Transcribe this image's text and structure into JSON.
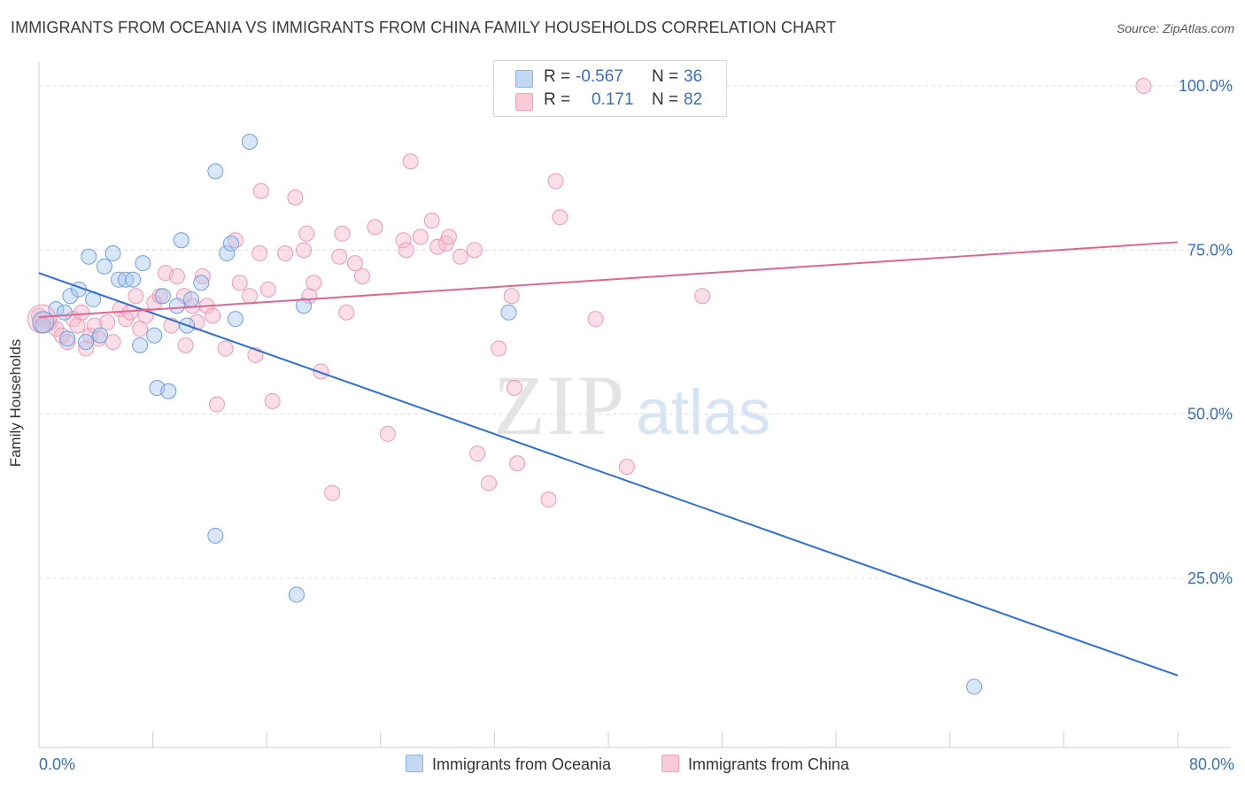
{
  "title": "IMMIGRANTS FROM OCEANIA VS IMMIGRANTS FROM CHINA FAMILY HOUSEHOLDS CORRELATION CHART",
  "source": "Source: ZipAtlas.com",
  "watermark": {
    "zip": "ZIP",
    "atlas": "atlas"
  },
  "legend": {
    "rows": [
      {
        "r_label": "R =",
        "r_value": "-0.567",
        "n_label": "N =",
        "n_value": "36",
        "color": "#a8c8f0"
      },
      {
        "r_label": "R =",
        "r_value": "0.171",
        "n_label": "N =",
        "n_value": "82",
        "color": "#f5b8cb"
      }
    ]
  },
  "bottom_legend": [
    {
      "label": "Immigrants from Oceania",
      "color": "#a8c8f0"
    },
    {
      "label": "Immigrants from China",
      "color": "#f5b8cb"
    }
  ],
  "chart_data": {
    "type": "scatter",
    "title": "IMMIGRANTS FROM OCEANIA VS IMMIGRANTS FROM CHINA FAMILY HOUSEHOLDS CORRELATION CHART",
    "xlabel": "",
    "ylabel": "Family Households",
    "xlim": [
      0,
      80
    ],
    "ylim": [
      0,
      103
    ],
    "x_tick_labels": [
      "0.0%",
      "80.0%"
    ],
    "y_tick_labels": [
      "25.0%",
      "50.0%",
      "75.0%",
      "100.0%"
    ],
    "y_ticks": [
      25,
      50,
      75,
      100
    ],
    "grid": "horizontal dashed",
    "legend_position": "top-center",
    "series": [
      {
        "name": "Immigrants from Oceania",
        "color": "#6f9fe0",
        "fill": "#a8c8f0",
        "line_color": "#2e6fd1",
        "trend": {
          "x": [
            0,
            80
          ],
          "y": [
            71.5,
            10.2
          ]
        },
        "points": [
          [
            0.3,
            63.5
          ],
          [
            1.2,
            66
          ],
          [
            1.8,
            65.5
          ],
          [
            2,
            61.5
          ],
          [
            2.2,
            68
          ],
          [
            2.8,
            69
          ],
          [
            3.3,
            61
          ],
          [
            3.5,
            74
          ],
          [
            3.8,
            67.5
          ],
          [
            4.3,
            62
          ],
          [
            4.6,
            72.5
          ],
          [
            5.2,
            74.5
          ],
          [
            5.6,
            70.5
          ],
          [
            6.1,
            70.5
          ],
          [
            6.6,
            70.5
          ],
          [
            7.1,
            60.5
          ],
          [
            7.3,
            73
          ],
          [
            8.1,
            62
          ],
          [
            8.3,
            54
          ],
          [
            8.7,
            68
          ],
          [
            9.1,
            53.5
          ],
          [
            9.7,
            66.5
          ],
          [
            10,
            76.5
          ],
          [
            10.4,
            63.5
          ],
          [
            10.7,
            67.5
          ],
          [
            11.4,
            70
          ],
          [
            12.4,
            87
          ],
          [
            13.2,
            74.5
          ],
          [
            13.5,
            76
          ],
          [
            13.8,
            64.5
          ],
          [
            14.8,
            91.5
          ],
          [
            18.6,
            66.5
          ],
          [
            33,
            65.5
          ],
          [
            12.4,
            31.5
          ],
          [
            18.1,
            22.5
          ],
          [
            65.7,
            8.5
          ]
        ]
      },
      {
        "name": "Immigrants from China",
        "color": "#ee9ab4",
        "fill": "#f5b8cb",
        "line_color": "#e0668f",
        "trend": {
          "x": [
            0,
            80
          ],
          "y": [
            64.8,
            76.2
          ]
        },
        "points": [
          [
            0.3,
            64.5
          ],
          [
            0.8,
            64
          ],
          [
            1.2,
            63
          ],
          [
            1.6,
            62
          ],
          [
            2,
            61
          ],
          [
            2.4,
            64.5
          ],
          [
            2.7,
            63.5
          ],
          [
            3,
            65.5
          ],
          [
            3.3,
            60
          ],
          [
            3.6,
            62
          ],
          [
            3.9,
            63.5
          ],
          [
            4.2,
            61.5
          ],
          [
            4.8,
            64
          ],
          [
            5.2,
            61
          ],
          [
            5.7,
            66
          ],
          [
            6.1,
            64.5
          ],
          [
            6.4,
            65.5
          ],
          [
            6.8,
            68
          ],
          [
            7.1,
            63
          ],
          [
            7.5,
            65
          ],
          [
            8.1,
            67
          ],
          [
            8.5,
            68
          ],
          [
            8.9,
            71.5
          ],
          [
            9.3,
            63.5
          ],
          [
            9.7,
            71
          ],
          [
            10.2,
            68
          ],
          [
            10.3,
            60.5
          ],
          [
            10.8,
            66.5
          ],
          [
            11.1,
            64
          ],
          [
            11.5,
            71
          ],
          [
            11.8,
            66.5
          ],
          [
            12.2,
            65
          ],
          [
            12.5,
            51.5
          ],
          [
            13.1,
            60
          ],
          [
            13.8,
            76.5
          ],
          [
            14.1,
            70
          ],
          [
            14.8,
            68
          ],
          [
            15.2,
            59
          ],
          [
            15.5,
            74.5
          ],
          [
            15.6,
            84
          ],
          [
            16.1,
            69
          ],
          [
            16.4,
            52
          ],
          [
            17.3,
            74.5
          ],
          [
            18,
            83
          ],
          [
            18.6,
            75
          ],
          [
            18.8,
            77.5
          ],
          [
            19,
            68
          ],
          [
            19.3,
            70
          ],
          [
            19.8,
            56.5
          ],
          [
            20.6,
            38
          ],
          [
            21.1,
            74
          ],
          [
            21.3,
            77.5
          ],
          [
            21.6,
            65.5
          ],
          [
            22.2,
            73
          ],
          [
            22.7,
            71
          ],
          [
            23.6,
            78.5
          ],
          [
            24.5,
            47
          ],
          [
            25.6,
            76.5
          ],
          [
            25.8,
            75
          ],
          [
            26.1,
            88.5
          ],
          [
            26.8,
            77
          ],
          [
            27.6,
            79.5
          ],
          [
            28,
            75.5
          ],
          [
            28.6,
            76
          ],
          [
            28.8,
            77
          ],
          [
            29.6,
            74
          ],
          [
            30.6,
            75
          ],
          [
            30.8,
            44
          ],
          [
            31.6,
            39.5
          ],
          [
            32.3,
            60
          ],
          [
            33.2,
            68
          ],
          [
            33.4,
            54
          ],
          [
            33.6,
            42.5
          ],
          [
            35.8,
            37
          ],
          [
            36.3,
            85.5
          ],
          [
            36.6,
            80
          ],
          [
            39.1,
            64.5
          ],
          [
            41.3,
            42
          ],
          [
            46.6,
            68
          ],
          [
            77.6,
            100
          ],
          [
            0,
            65
          ],
          [
            0.2,
            63.5
          ]
        ]
      }
    ]
  }
}
